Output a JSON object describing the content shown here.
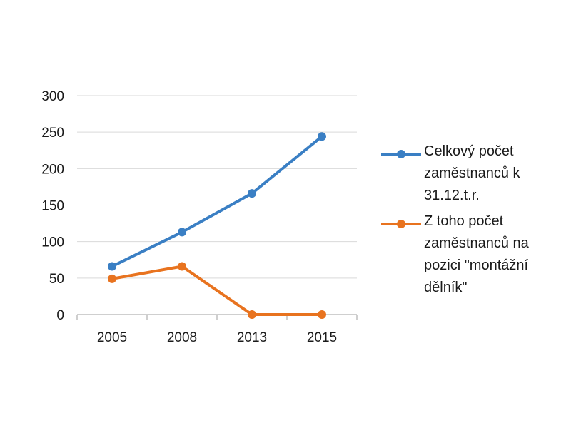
{
  "chart_data": {
    "type": "line",
    "categories": [
      "2005",
      "2008",
      "2013",
      "2015"
    ],
    "series": [
      {
        "name": "Celkový počet zaměstnanců k 31.12.t.r.",
        "color": "#3a7fc4",
        "values": [
          66,
          113,
          166,
          244
        ]
      },
      {
        "name": "Z toho počet zaměstnanců na pozici \"montážní dělník\"",
        "color": "#e8731f",
        "values": [
          49,
          66,
          0,
          0
        ]
      }
    ],
    "ylim": [
      0,
      300
    ],
    "yticks": [
      0,
      50,
      100,
      150,
      200,
      250,
      300
    ],
    "ytick_labels": [
      "0",
      "50",
      "100",
      "150",
      "200",
      "250",
      "300"
    ],
    "grid": true,
    "legend_position": "right"
  }
}
